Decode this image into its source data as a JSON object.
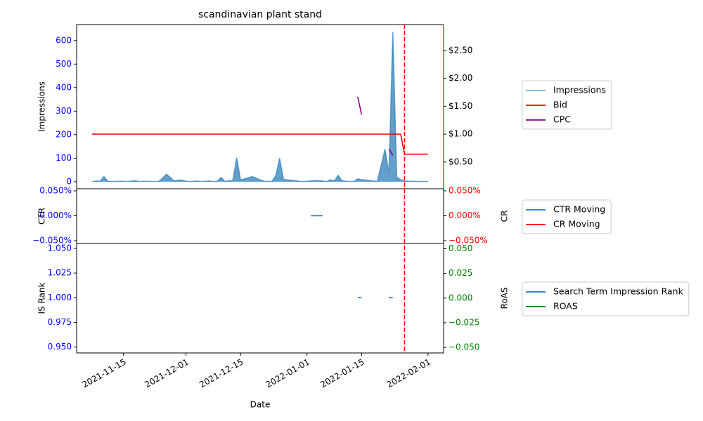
{
  "chart_data": [
    {
      "type": "line",
      "title": "scandinavian plant stand",
      "ylabel": "Impressions",
      "ylim": [
        -30,
        668
      ],
      "yticks": [
        0,
        100,
        200,
        300,
        400,
        500,
        600
      ],
      "ytick_color": "#0000ff",
      "y2lim": [
        0.02,
        2.965
      ],
      "y2ticks": [
        {
          "value": 0.5,
          "label": "$0.50"
        },
        {
          "value": 1,
          "label": "$1.00"
        },
        {
          "value": 1.5,
          "label": "$1.50"
        },
        {
          "value": 2,
          "label": "$2.00"
        },
        {
          "value": 2.5,
          "label": "$2.50"
        }
      ],
      "y2tick_color": "#000000",
      "y2_spine_color": "#ff0000",
      "legend": "right",
      "x": [
        "2021-11-07",
        "2021-11-08",
        "2021-11-09",
        "2021-11-10",
        "2021-11-11",
        "2021-11-12",
        "2021-11-13",
        "2021-11-14",
        "2021-11-15",
        "2021-11-16",
        "2021-11-17",
        "2021-11-18",
        "2021-11-19",
        "2021-11-20",
        "2021-11-21",
        "2021-11-22",
        "2021-11-23",
        "2021-11-24",
        "2021-11-25",
        "2021-11-26",
        "2021-11-27",
        "2021-11-28",
        "2021-11-29",
        "2021-11-30",
        "2021-12-01",
        "2021-12-02",
        "2021-12-03",
        "2021-12-04",
        "2021-12-05",
        "2021-12-06",
        "2021-12-07",
        "2021-12-08",
        "2021-12-09",
        "2021-12-10",
        "2021-12-11",
        "2021-12-12",
        "2021-12-13",
        "2021-12-14",
        "2021-12-15",
        "2021-12-16",
        "2021-12-17",
        "2021-12-18",
        "2021-12-19",
        "2021-12-20",
        "2021-12-21",
        "2021-12-22",
        "2021-12-23",
        "2021-12-24",
        "2021-12-25",
        "2021-12-26",
        "2021-12-27",
        "2021-12-28",
        "2021-12-29",
        "2021-12-30",
        "2021-12-31",
        "2022-01-01",
        "2022-01-02",
        "2022-01-03",
        "2022-01-04",
        "2022-01-05",
        "2022-01-06",
        "2022-01-07",
        "2022-01-08",
        "2022-01-09",
        "2022-01-10",
        "2022-01-11",
        "2022-01-12",
        "2022-01-13",
        "2022-01-14",
        "2022-01-15",
        "2022-01-16",
        "2022-01-17",
        "2022-01-18",
        "2022-01-19",
        "2022-01-20",
        "2022-01-21",
        "2022-01-22",
        "2022-01-23",
        "2022-01-24",
        "2022-01-25",
        "2022-01-26",
        "2022-01-27",
        "2022-01-28",
        "2022-01-29",
        "2022-01-30",
        "2022-01-31",
        "2022-02-01"
      ],
      "series": [
        {
          "name": "Impressions",
          "color": "#1f77b4",
          "fill": true,
          "values": [
            0,
            3,
            2,
            22,
            2,
            1,
            1,
            2,
            2,
            1,
            3,
            4,
            1,
            2,
            2,
            1,
            1,
            1,
            15,
            32,
            18,
            3,
            6,
            7,
            2,
            1,
            2,
            3,
            1,
            2,
            3,
            1,
            2,
            18,
            1,
            4,
            5,
            102,
            8,
            12,
            17,
            22,
            15,
            8,
            2,
            1,
            1,
            25,
            100,
            10,
            8,
            6,
            4,
            2,
            1,
            2,
            3,
            5,
            4,
            3,
            1,
            8,
            3,
            27,
            4,
            2,
            1,
            1,
            12,
            9,
            7,
            5,
            3,
            1,
            70,
            138,
            38,
            637,
            20,
            8,
            3,
            2,
            2,
            1,
            1,
            1,
            1
          ]
        },
        {
          "name": "Bid",
          "color": "#ff0000",
          "axis": "y2",
          "values": [
            1,
            1,
            1,
            1,
            1,
            1,
            1,
            1,
            1,
            1,
            1,
            1,
            1,
            1,
            1,
            1,
            1,
            1,
            1,
            1,
            1,
            1,
            1,
            1,
            1,
            1,
            1,
            1,
            1,
            1,
            1,
            1,
            1,
            1,
            1,
            1,
            1,
            1,
            1,
            1,
            1,
            1,
            1,
            1,
            1,
            1,
            1,
            1,
            1,
            1,
            1,
            1,
            1,
            1,
            1,
            1,
            1,
            1,
            1,
            1,
            1,
            1,
            1,
            1,
            1,
            1,
            1,
            1,
            1,
            1,
            1,
            1,
            1,
            1,
            1,
            1,
            1,
            1,
            1,
            1,
            0.64,
            0.64,
            0.64,
            0.64,
            0.64,
            0.64,
            0.64
          ]
        },
        {
          "name": "CPC",
          "color": "#800080",
          "axis": "y2",
          "x": [
            "2022-01-14",
            "2022-01-15",
            "2022-01-16",
            "2022-01-22",
            "2022-01-23"
          ],
          "values": [
            1.67,
            1.35,
            null,
            0.73,
            0.62
          ]
        }
      ]
    },
    {
      "type": "line",
      "ylabel": "CTR",
      "y2label": "CR",
      "ylim": [
        -0.0556,
        0.0542
      ],
      "yticks": [
        {
          "value": -0.05,
          "label": "−0.050%"
        },
        {
          "value": 0,
          "label": "0.000%"
        },
        {
          "value": 0.05,
          "label": "0.050%"
        }
      ],
      "ytick_color": "#0000ff",
      "y2lim": [
        -0.0556,
        0.0542
      ],
      "y2ticks": [
        {
          "value": -0.05,
          "label": "−0.050%"
        },
        {
          "value": 0,
          "label": "0.000%"
        },
        {
          "value": 0.05,
          "label": "0.050%"
        }
      ],
      "y2tick_color": "#ff0000",
      "legend": "right",
      "series": [
        {
          "name": "CTR Moving",
          "color": "#1f77b4",
          "x": [
            "2022-01-02",
            "2022-01-03",
            "2022-01-04",
            "2022-01-05"
          ],
          "values": [
            0,
            0,
            0,
            0
          ]
        },
        {
          "name": "CR Moving",
          "color": "#ff0000",
          "axis": "y2",
          "x": [],
          "values": []
        }
      ]
    },
    {
      "type": "line",
      "ylabel": "IS Rank",
      "y2label": "RoAS",
      "xlabel": "Date",
      "xlim": [
        "2021-11-03",
        "2022-02-05"
      ],
      "xticks": [
        "2021-11-15",
        "2021-12-01",
        "2021-12-15",
        "2022-01-01",
        "2022-01-15",
        "2022-02-01"
      ],
      "vline": "2022-01-26",
      "vline_color": "#ff0000",
      "ylim": [
        0.944,
        1.055
      ],
      "yticks": [
        {
          "value": 0.95,
          "label": "0.950"
        },
        0.975,
        {
          "value": 1,
          "label": "1.000"
        },
        1.025,
        {
          "value": 1.05,
          "label": "1.050"
        }
      ],
      "ytick_color": "#0000ff",
      "y2lim": [
        -0.0556,
        0.0553
      ],
      "y2ticks": [
        {
          "value": -0.05,
          "label": "−0.050"
        },
        {
          "value": -0.025,
          "label": "−0.025"
        },
        {
          "value": 0,
          "label": "0.000"
        },
        0.025,
        {
          "value": 0.05,
          "label": "0.050"
        }
      ],
      "y2tick_color": "#008000",
      "legend": "right",
      "series": [
        {
          "name": "Search Term Impression Rank",
          "color": "#1f77b4",
          "x": [
            "2022-01-14",
            "2022-01-15",
            "2022-01-16",
            "2022-01-22",
            "2022-01-23"
          ],
          "values": [
            1,
            1,
            null,
            1,
            1
          ]
        },
        {
          "name": "ROAS",
          "color": "#008000",
          "axis": "y2",
          "x": [],
          "values": []
        }
      ]
    }
  ]
}
